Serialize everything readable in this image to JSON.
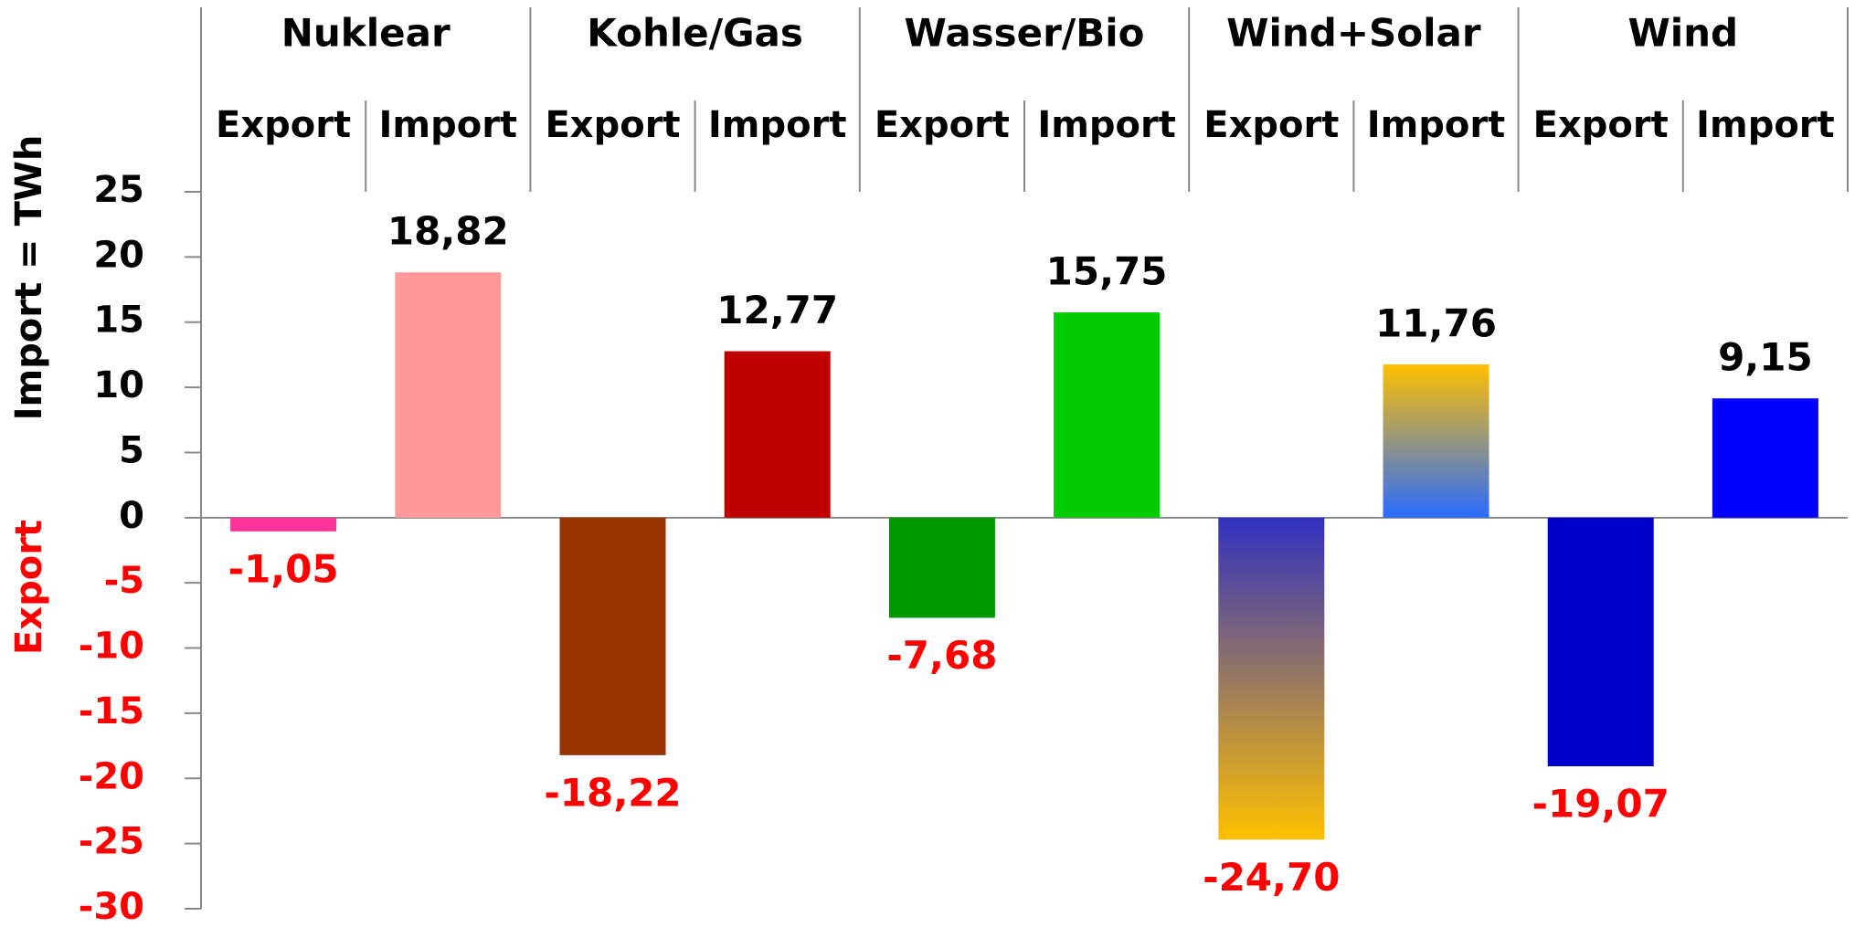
{
  "chart_data": {
    "type": "bar",
    "groups": [
      "Nuklear",
      "Kohle/Gas",
      "Wasser/Bio",
      "Wind+Solar",
      "Wind"
    ],
    "categories": [
      "Export",
      "Import",
      "Export",
      "Import",
      "Export",
      "Import",
      "Export",
      "Import",
      "Export",
      "Import"
    ],
    "values": [
      -1.05,
      18.82,
      -18.22,
      12.77,
      -7.68,
      15.75,
      -24.7,
      11.76,
      -19.07,
      9.15
    ],
    "value_labels": [
      "-1,05",
      "18,82",
      "-18,22",
      "12,77",
      "-7,68",
      "15,75",
      "-24,70",
      "11,76",
      "-19,07",
      "9,15"
    ],
    "colors": [
      "#ff3399",
      "#ff9999",
      "#993300",
      "#c00000",
      "#009900",
      "#00cc00",
      [
        "#3030c0",
        "#ffc000"
      ],
      [
        "#ffc000",
        "#2a6bff"
      ],
      "#0000cc",
      "#0000ff"
    ],
    "ylabel": "Import =  TWh",
    "ylabel_negative": "Export",
    "ylim": [
      -30,
      25
    ],
    "yticks": [
      -30,
      -25,
      -20,
      -15,
      -10,
      -5,
      0,
      5,
      10,
      15,
      20,
      25
    ],
    "negative_color": "#ff0000"
  }
}
